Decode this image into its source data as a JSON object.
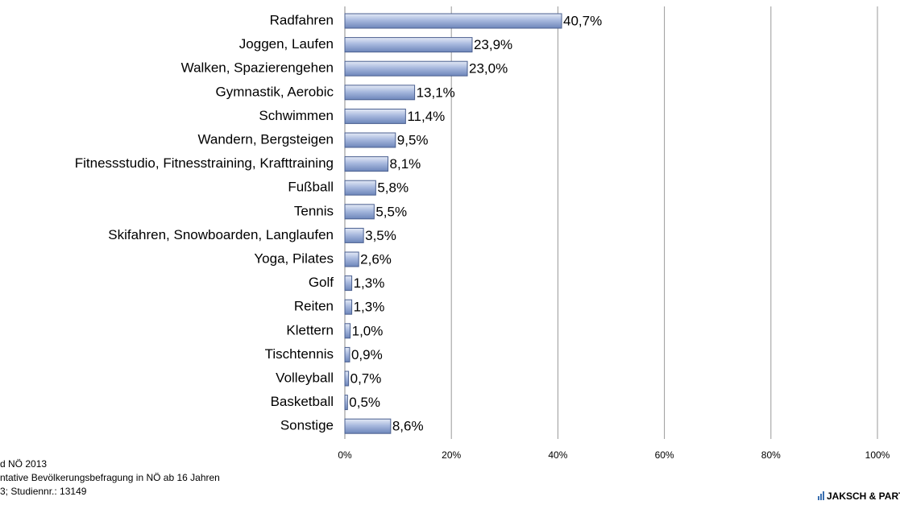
{
  "chart_data": {
    "type": "bar",
    "orientation": "horizontal",
    "categories": [
      "Radfahren",
      "Joggen, Laufen",
      "Walken, Spazierengehen",
      "Gymnastik, Aerobic",
      "Schwimmen",
      "Wandern, Bergsteigen",
      "Fitnessstudio, Fitnesstraining, Krafttraining",
      "Fußball",
      "Tennis",
      "Skifahren, Snowboarden, Langlaufen",
      "Yoga, Pilates",
      "Golf",
      "Reiten",
      "Klettern",
      "Tischtennis",
      "Volleyball",
      "Basketball",
      "Sonstige"
    ],
    "values": [
      40.7,
      23.9,
      23.0,
      13.1,
      11.4,
      9.5,
      8.1,
      5.8,
      5.5,
      3.5,
      2.6,
      1.3,
      1.3,
      1.0,
      0.9,
      0.7,
      0.5,
      8.6
    ],
    "value_labels": [
      "40,7%",
      "23,9%",
      "23,0%",
      "13,1%",
      "11,4%",
      "9,5%",
      "8,1%",
      "5,8%",
      "5,5%",
      "3,5%",
      "2,6%",
      "1,3%",
      "1,3%",
      "1,0%",
      "0,9%",
      "0,7%",
      "0,5%",
      "8,6%"
    ],
    "color": "#8ea3cf",
    "xlim": [
      0,
      100
    ],
    "xticks": [
      {
        "value": 0,
        "label": "0%"
      },
      {
        "value": 20,
        "label": "20%"
      },
      {
        "value": 40,
        "label": "40%"
      },
      {
        "value": 60,
        "label": "60%"
      },
      {
        "value": 80,
        "label": "80%"
      },
      {
        "value": 100,
        "label": "100%"
      }
    ],
    "grid": true
  },
  "footer": [
    "d NÖ 2013",
    "ntative Bevölkerungsbefragung in NÖ ab 16 Jahren",
    "3; Studiennr.: 13149"
  ],
  "logo": "JAKSCH & PARTNER"
}
